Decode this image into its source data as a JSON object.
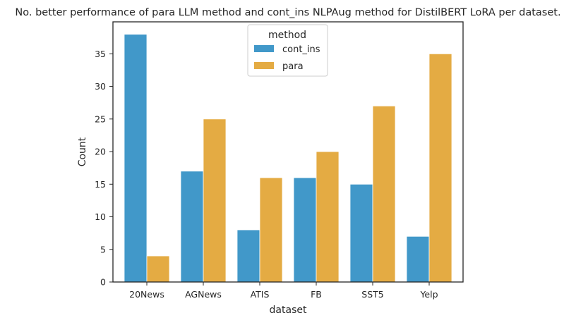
{
  "chart_data": {
    "type": "bar",
    "title": "No. better performance of para LLM method and cont_ins NLPAug method for DistilBERT LoRA per dataset.",
    "xlabel": "dataset",
    "ylabel": "Count",
    "categories": [
      "20News",
      "AGNews",
      "ATIS",
      "FB",
      "SST5",
      "Yelp"
    ],
    "series": [
      {
        "name": "cont_ins",
        "values": [
          38,
          17,
          8,
          16,
          15,
          7
        ],
        "color": "#4198c9"
      },
      {
        "name": "para",
        "values": [
          4,
          25,
          16,
          20,
          27,
          35
        ],
        "color": "#e4ab43"
      }
    ],
    "ylim": [
      0,
      39.9
    ],
    "yticks": [
      0,
      5,
      10,
      15,
      20,
      25,
      30,
      35
    ],
    "grid": false,
    "legend": {
      "title": "method",
      "placement": "upper center"
    }
  }
}
